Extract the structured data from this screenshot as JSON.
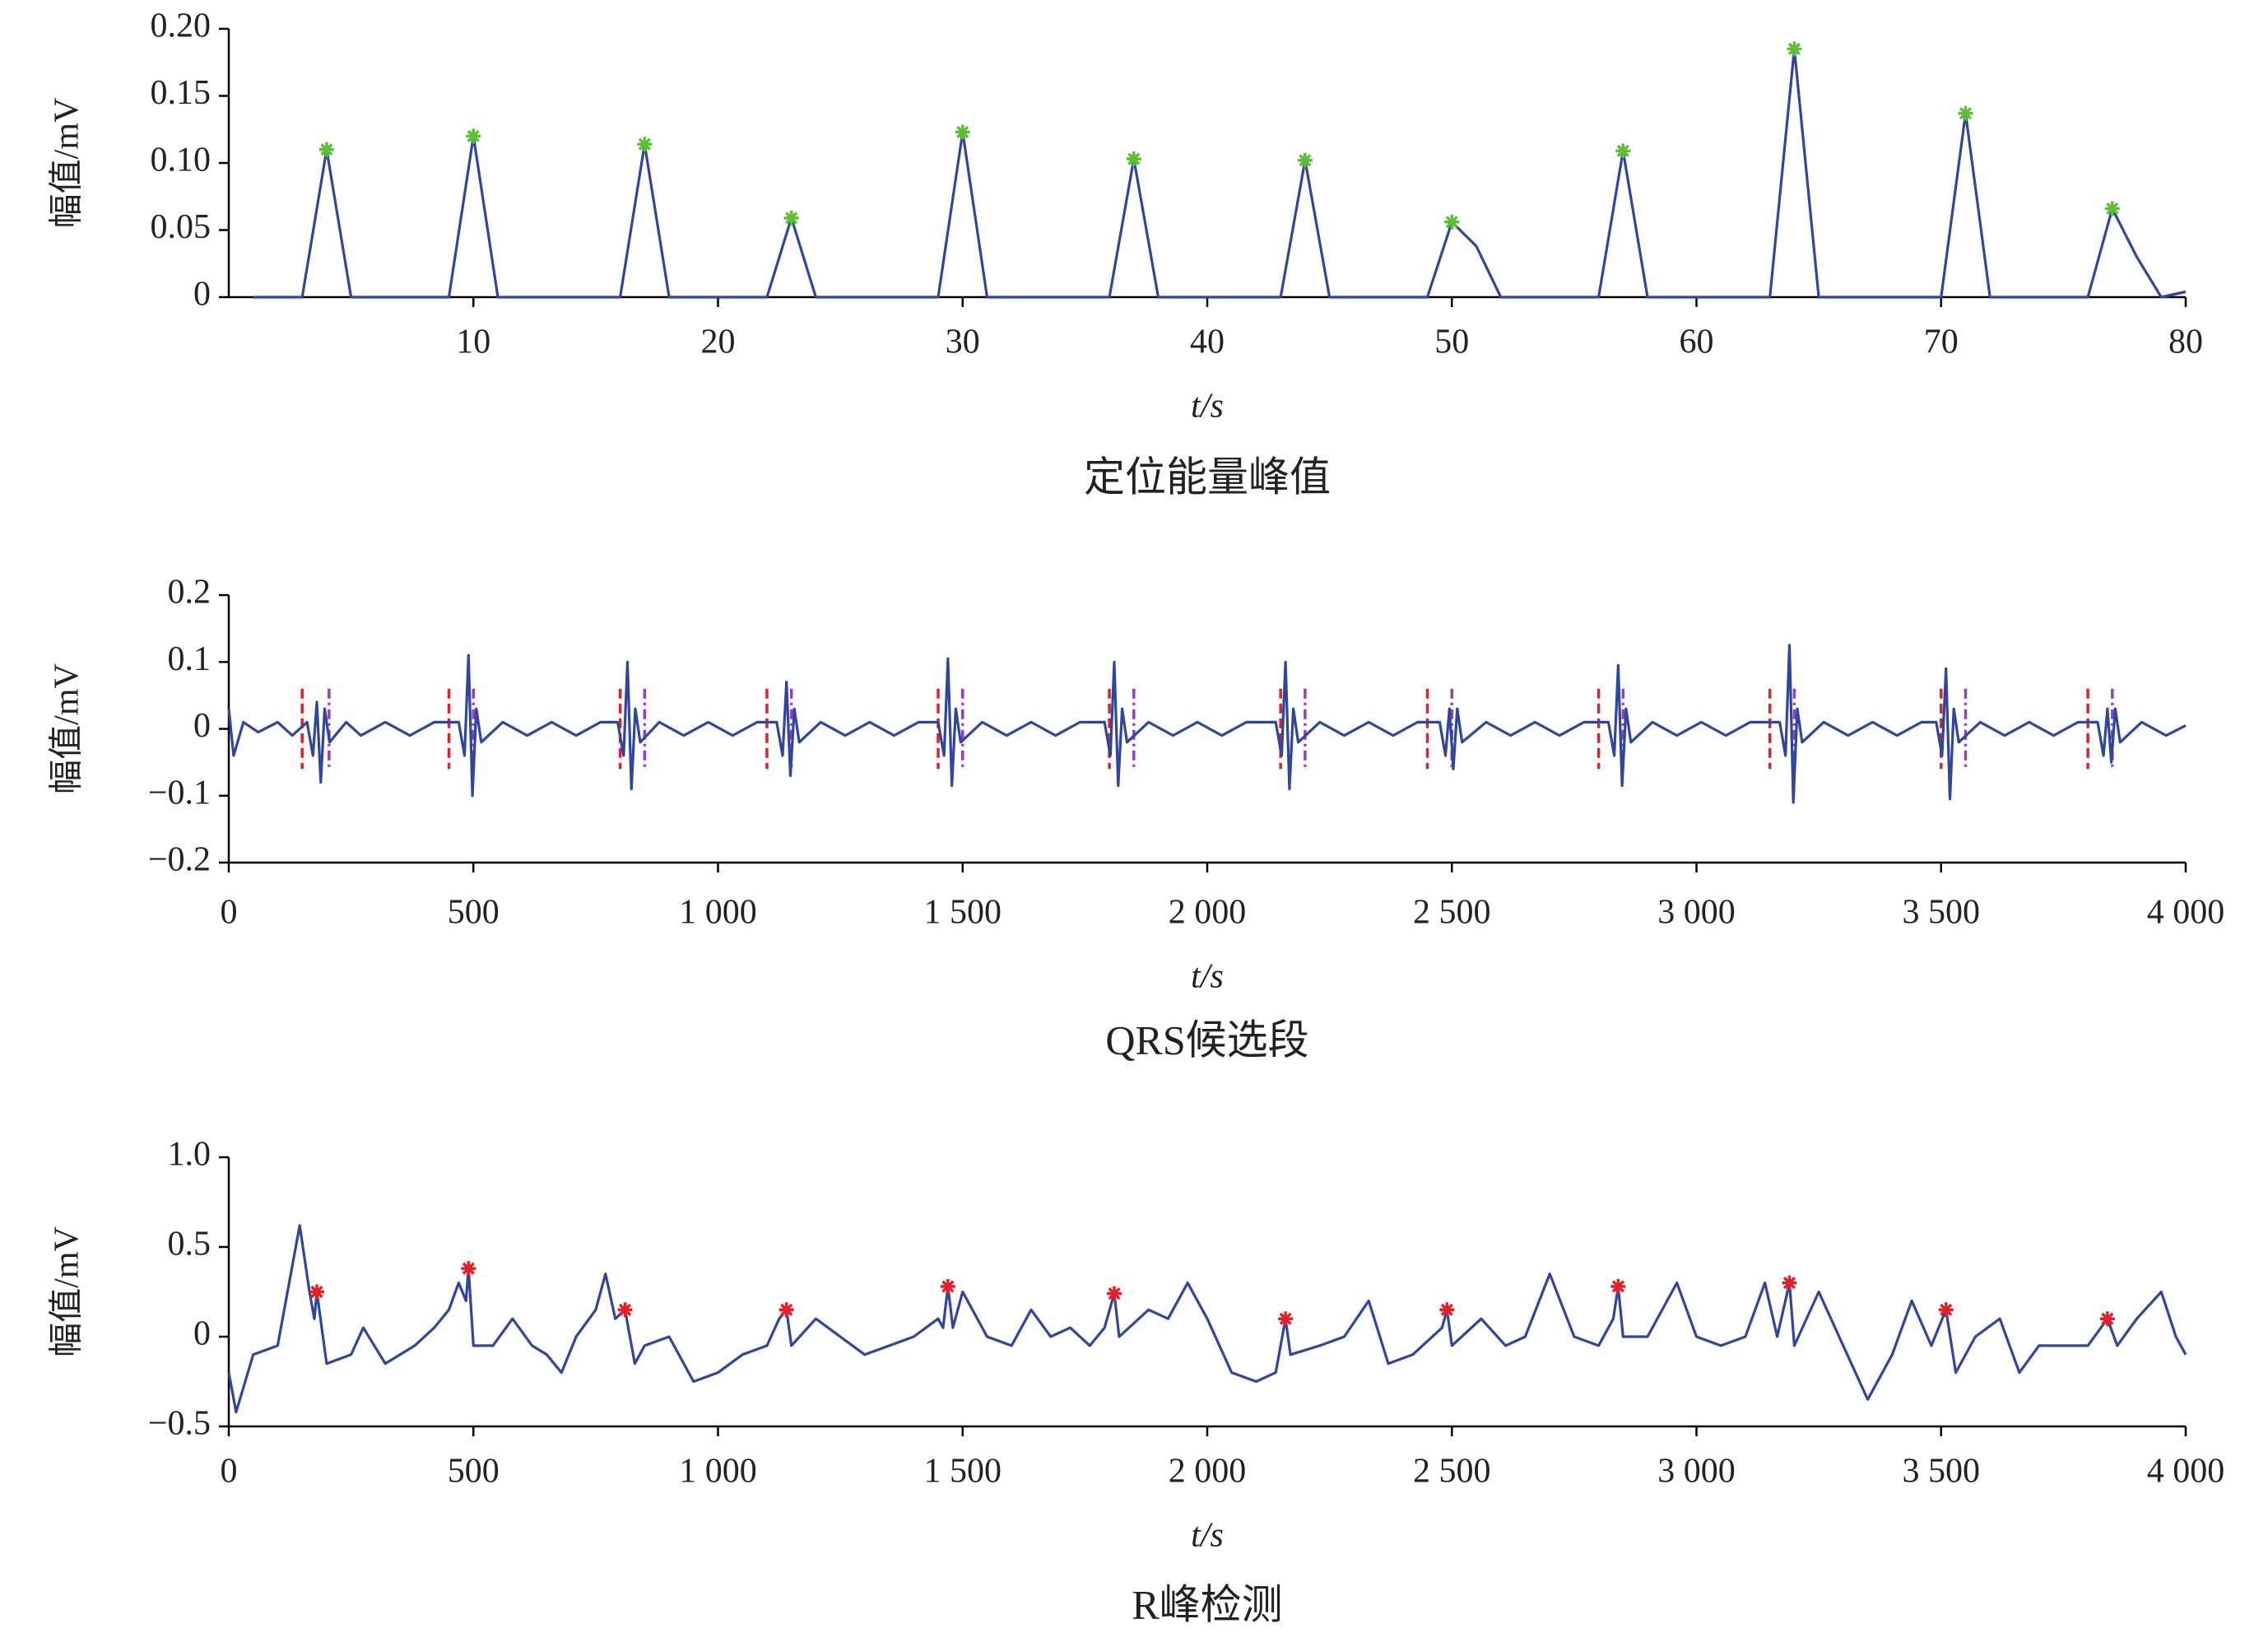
{
  "chart_data": [
    {
      "type": "line",
      "y_label": "幅值/mV",
      "x_label": "t/s",
      "caption": "定位能量峰值",
      "x": [
        1,
        2,
        3,
        4,
        5,
        6,
        7,
        8,
        9,
        10,
        11,
        12,
        13,
        14,
        15,
        16,
        17,
        18,
        19,
        20,
        21,
        22,
        23,
        24,
        25,
        26,
        27,
        28,
        29,
        30,
        31,
        32,
        33,
        34,
        35,
        36,
        37,
        38,
        39,
        40,
        41,
        42,
        43,
        44,
        45,
        46,
        47,
        48,
        49,
        50,
        51,
        52,
        53,
        54,
        55,
        56,
        57,
        58,
        59,
        60,
        61,
        62,
        63,
        64,
        65,
        66,
        67,
        68,
        69,
        70,
        71,
        72,
        73,
        74,
        75,
        76,
        77,
        78,
        79,
        80
      ],
      "series": [
        {
          "color": "#2e46a0",
          "values": [
            0,
            0,
            0,
            0.11,
            0,
            0,
            0,
            0,
            0,
            0.12,
            0,
            0,
            0,
            0,
            0,
            0,
            0.114,
            0,
            0,
            0,
            0,
            0,
            0.059,
            0,
            0,
            0,
            0,
            0,
            0,
            0.123,
            0,
            0,
            0,
            0,
            0,
            0,
            0.103,
            0,
            0,
            0,
            0,
            0,
            0,
            0.102,
            0,
            0,
            0,
            0,
            0,
            0.056,
            0.038,
            0,
            0,
            0,
            0,
            0,
            0.109,
            0,
            0,
            0,
            0,
            0,
            0,
            0.185,
            0,
            0,
            0,
            0,
            0,
            0,
            0.137,
            0,
            0,
            0,
            0,
            0,
            0.066,
            0.03,
            0,
            0.004
          ]
        }
      ],
      "peaks": {
        "color": "#5cbf34",
        "x": [
          4,
          10,
          17,
          23,
          30,
          37,
          44,
          50,
          57,
          64,
          71,
          77
        ],
        "values": [
          0.11,
          0.12,
          0.114,
          0.059,
          0.123,
          0.103,
          0.102,
          0.056,
          0.109,
          0.185,
          0.137,
          0.066
        ]
      },
      "xlim": [
        0,
        80
      ],
      "xticks": [
        10,
        20,
        30,
        40,
        50,
        60,
        70,
        80
      ],
      "ylim": [
        0,
        0.2
      ],
      "yticks": [
        0,
        0.05,
        {
          "value": 0.1,
          "label": "0.10"
        },
        0.15,
        {
          "value": 0.2,
          "label": "0.20"
        }
      ]
    },
    {
      "type": "line",
      "y_label": "幅值/mV",
      "x_label": "t/s",
      "caption": "QRS候选段",
      "x": [
        0,
        10,
        30,
        60,
        100,
        130,
        160,
        172,
        180,
        188,
        196,
        206,
        240,
        270,
        320,
        370,
        420,
        470,
        482,
        490,
        498,
        506,
        516,
        560,
        610,
        660,
        710,
        760,
        795,
        807,
        815,
        823,
        831,
        841,
        880,
        930,
        980,
        1030,
        1080,
        1120,
        1132,
        1140,
        1148,
        1156,
        1166,
        1210,
        1260,
        1310,
        1360,
        1410,
        1450,
        1462,
        1470,
        1478,
        1486,
        1496,
        1540,
        1590,
        1640,
        1690,
        1740,
        1790,
        1802,
        1810,
        1818,
        1826,
        1836,
        1880,
        1930,
        1980,
        2030,
        2080,
        2140,
        2152,
        2160,
        2168,
        2176,
        2186,
        2230,
        2280,
        2330,
        2380,
        2430,
        2475,
        2487,
        2495,
        2503,
        2511,
        2521,
        2570,
        2620,
        2670,
        2720,
        2770,
        2820,
        2832,
        2840,
        2848,
        2856,
        2866,
        2910,
        2960,
        3010,
        3060,
        3110,
        3170,
        3182,
        3190,
        3198,
        3206,
        3216,
        3260,
        3310,
        3360,
        3410,
        3460,
        3490,
        3502,
        3510,
        3518,
        3526,
        3536,
        3580,
        3630,
        3680,
        3730,
        3780,
        3820,
        3832,
        3840,
        3848,
        3856,
        3866,
        3910,
        3960,
        4000
      ],
      "series": [
        {
          "color": "#2e46a0",
          "values": [
            0.03,
            -0.04,
            0.01,
            -0.005,
            0.01,
            -0.01,
            0.01,
            -0.04,
            0.04,
            -0.08,
            0.03,
            -0.02,
            0.01,
            -0.01,
            0.01,
            -0.01,
            0.01,
            0.01,
            -0.04,
            0.11,
            -0.1,
            0.03,
            -0.02,
            0.01,
            -0.01,
            0.01,
            -0.01,
            0.01,
            0.01,
            -0.04,
            0.1,
            -0.09,
            0.03,
            -0.02,
            0.01,
            -0.01,
            0.01,
            -0.01,
            0.01,
            0.01,
            -0.04,
            0.07,
            -0.07,
            0.03,
            -0.02,
            0.01,
            -0.01,
            0.01,
            -0.01,
            0.01,
            0.01,
            -0.04,
            0.105,
            -0.085,
            0.03,
            -0.02,
            0.01,
            -0.01,
            0.01,
            -0.01,
            0.01,
            0.01,
            -0.04,
            0.1,
            -0.085,
            0.03,
            -0.02,
            0.01,
            -0.01,
            0.01,
            -0.01,
            0.01,
            0.01,
            -0.04,
            0.1,
            -0.09,
            0.03,
            -0.02,
            0.01,
            -0.01,
            0.01,
            -0.01,
            0.01,
            0.01,
            -0.04,
            0.03,
            -0.06,
            0.03,
            -0.02,
            0.01,
            -0.01,
            0.01,
            -0.01,
            0.01,
            0.01,
            -0.04,
            0.095,
            -0.085,
            0.03,
            -0.02,
            0.01,
            -0.01,
            0.01,
            -0.01,
            0.01,
            0.01,
            -0.04,
            0.125,
            -0.11,
            0.03,
            -0.02,
            0.01,
            -0.01,
            0.01,
            -0.01,
            0.01,
            0.01,
            -0.04,
            0.09,
            -0.105,
            0.03,
            -0.02,
            0.01,
            -0.01,
            0.01,
            -0.01,
            0.01,
            0.01,
            -0.04,
            0.03,
            -0.05,
            0.03,
            -0.02,
            0.01,
            -0.01,
            0.005
          ]
        }
      ],
      "segments": {
        "start_color": "#e32028",
        "end_color": "#9a3cc2",
        "range": [
          -0.06,
          0.06
        ],
        "starts": [
          150,
          450,
          800,
          1100,
          1450,
          1800,
          2150,
          2450,
          2800,
          3150,
          3500,
          3800
        ],
        "ends": [
          205,
          500,
          850,
          1150,
          1500,
          1850,
          2200,
          2500,
          2850,
          3200,
          3550,
          3850
        ]
      },
      "xlim": [
        0,
        4000
      ],
      "xticks": [
        0,
        500,
        {
          "value": 1000,
          "label": "1 000"
        },
        {
          "value": 1500,
          "label": "1 500"
        },
        {
          "value": 2000,
          "label": "2 000"
        },
        {
          "value": 2500,
          "label": "2 500"
        },
        {
          "value": 3000,
          "label": "3 000"
        },
        {
          "value": 3500,
          "label": "3 500"
        },
        {
          "value": 4000,
          "label": "4 000"
        }
      ],
      "ylim": [
        -0.2,
        0.2
      ],
      "yticks": [
        {
          "value": -0.2,
          "label": "−0.2"
        },
        {
          "value": -0.1,
          "label": "−0.1"
        },
        0,
        0.1,
        0.2
      ]
    },
    {
      "type": "line",
      "y_label": "幅值/mV",
      "x_label": "t/s",
      "caption": "R峰检测",
      "x": [
        0,
        15,
        50,
        100,
        145,
        165,
        175,
        180,
        200,
        250,
        275,
        320,
        380,
        420,
        450,
        470,
        485,
        490,
        500,
        540,
        580,
        620,
        650,
        680,
        710,
        750,
        770,
        790,
        810,
        830,
        850,
        900,
        950,
        1000,
        1050,
        1100,
        1125,
        1140,
        1150,
        1200,
        1250,
        1300,
        1350,
        1400,
        1450,
        1460,
        1470,
        1480,
        1500,
        1550,
        1600,
        1640,
        1680,
        1720,
        1760,
        1790,
        1810,
        1820,
        1880,
        1920,
        1960,
        2000,
        2050,
        2100,
        2140,
        2160,
        2170,
        2230,
        2280,
        2330,
        2370,
        2420,
        2480,
        2490,
        2500,
        2560,
        2610,
        2650,
        2700,
        2750,
        2800,
        2830,
        2840,
        2850,
        2900,
        2960,
        3000,
        3050,
        3100,
        3140,
        3165,
        3190,
        3200,
        3250,
        3300,
        3350,
        3400,
        3440,
        3480,
        3510,
        3530,
        3570,
        3620,
        3660,
        3700,
        3800,
        3840,
        3860,
        3900,
        3950,
        3980,
        4000
      ],
      "series": [
        {
          "color": "#2e46a0",
          "values": [
            -0.2,
            -0.42,
            -0.1,
            -0.05,
            0.62,
            0.25,
            0.1,
            0.25,
            -0.15,
            -0.1,
            0.05,
            -0.15,
            -0.05,
            0.05,
            0.15,
            0.3,
            0.2,
            0.38,
            -0.05,
            -0.05,
            0.1,
            -0.05,
            -0.1,
            -0.2,
            0,
            0.15,
            0.35,
            0.1,
            0.15,
            -0.15,
            -0.05,
            0,
            -0.25,
            -0.2,
            -0.1,
            -0.05,
            0.1,
            0.15,
            -0.05,
            0.1,
            0,
            -0.1,
            -0.05,
            0,
            0.1,
            0.05,
            0.28,
            0.05,
            0.25,
            0,
            -0.05,
            0.15,
            0,
            0.05,
            -0.05,
            0.05,
            0.24,
            0,
            0.15,
            0.1,
            0.3,
            0.1,
            -0.2,
            -0.25,
            -0.2,
            0.1,
            -0.1,
            -0.05,
            0,
            0.2,
            -0.15,
            -0.1,
            0.05,
            0.15,
            -0.05,
            0.1,
            -0.05,
            0,
            0.35,
            0,
            -0.05,
            0.1,
            0.28,
            0,
            0,
            0.3,
            0,
            -0.05,
            0,
            0.3,
            0,
            0.3,
            -0.05,
            0.25,
            -0.05,
            -0.35,
            -0.1,
            0.2,
            -0.05,
            0.15,
            -0.2,
            0,
            0.1,
            -0.2,
            -0.05,
            -0.05,
            0.1,
            -0.05,
            0.1,
            0.25,
            0,
            -0.1
          ]
        }
      ],
      "peaks": {
        "color": "#e32028",
        "x": [
          180,
          490,
          810,
          1140,
          1470,
          1810,
          2160,
          2490,
          2840,
          3190,
          3510,
          3840
        ],
        "values": [
          0.25,
          0.38,
          0.15,
          0.15,
          0.28,
          0.24,
          0.1,
          0.15,
          0.28,
          0.3,
          0.15,
          0.1
        ]
      },
      "xlim": [
        0,
        4000
      ],
      "xticks": [
        0,
        500,
        {
          "value": 1000,
          "label": "1 000"
        },
        {
          "value": 1500,
          "label": "1 500"
        },
        {
          "value": 2000,
          "label": "2 000"
        },
        {
          "value": 2500,
          "label": "2 500"
        },
        {
          "value": 3000,
          "label": "3 000"
        },
        {
          "value": 3500,
          "label": "3 500"
        },
        {
          "value": 4000,
          "label": "4 000"
        }
      ],
      "ylim": [
        -0.5,
        1.0
      ],
      "yticks": [
        {
          "value": -0.5,
          "label": "−0.5"
        },
        0,
        0.5,
        {
          "value": 1.0,
          "label": "1.0"
        }
      ]
    }
  ]
}
